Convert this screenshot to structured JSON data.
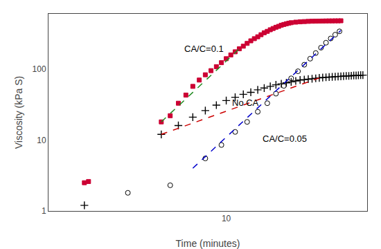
{
  "chart_data": {
    "type": "scatter",
    "xlabel": "Time (minutes)",
    "ylabel": "Viscosity (kPa S)",
    "log": true,
    "grid": false,
    "xlim": [
      1.5,
      45
    ],
    "ylim": [
      1,
      600
    ],
    "xticks": [
      10
    ],
    "yticks": [
      1,
      10,
      100
    ],
    "series": [
      {
        "type": "scatter",
        "marker": "square",
        "color": "#cc0033",
        "x": [
          2.2,
          2.3,
          5.0,
          5.5,
          6.0,
          6.5,
          7.0,
          7.5,
          8.0,
          8.5,
          9.0,
          9.5,
          10.0,
          10.5,
          11.0,
          11.5,
          12.0,
          12.5,
          13.0,
          13.5,
          14.0,
          14.5,
          15.0,
          15.5,
          16.0,
          16.5,
          17.0,
          17.5,
          18.0,
          18.5,
          19.0,
          19.5,
          20.0,
          21.0,
          22.0,
          23.0,
          24.0,
          25.0,
          26.0,
          27.0,
          28.0,
          29.0,
          30.0,
          31.0,
          32.0,
          33.0,
          34.0
        ],
        "values": [
          2.5,
          2.6,
          18.0,
          22.0,
          33.0,
          43.0,
          57.0,
          70.0,
          83.0,
          95.0,
          108.0,
          123.0,
          140.0,
          158.0,
          175.0,
          193.0,
          210.0,
          230.0,
          250.0,
          268.0,
          285.0,
          305.0,
          325.0,
          340.0,
          358.0,
          373.0,
          388.0,
          400.0,
          415.0,
          425.0,
          435.0,
          443.0,
          450.0,
          458.0,
          463.0,
          467.0,
          470.0,
          472.0,
          473.0,
          474.0,
          475.0,
          476.0,
          477.0,
          477.0,
          478.0,
          478.0,
          479.0
        ]
      },
      {
        "type": "line",
        "line_style": "dashed",
        "color": "#228B22",
        "x": [
          5.0,
          11.5
        ],
        "values": [
          18.0,
          193.0
        ]
      },
      {
        "type": "scatter",
        "marker": "cross",
        "color": "#000000",
        "x": [
          2.2,
          5.0,
          6.0,
          7.0,
          8.0,
          9.0,
          10.0,
          11.0,
          12.0,
          13.0,
          14.0,
          15.0,
          16.0,
          17.0,
          18.0,
          19.0,
          20.0,
          21.0,
          22.0,
          23.0,
          24.0,
          25.0,
          26.0,
          27.0,
          28.0,
          29.0,
          30.0,
          31.0,
          32.0,
          33.0,
          34.0,
          35.0,
          36.0,
          37.0,
          38.0,
          39.0,
          40.0,
          41.0,
          42.0,
          43.0
        ],
        "values": [
          1.2,
          12.0,
          16.0,
          21.0,
          26.0,
          31.0,
          36.0,
          40.0,
          44.0,
          47.0,
          51.0,
          54.0,
          57.0,
          60.0,
          62.0,
          64.0,
          66.0,
          68.0,
          70.0,
          71.0,
          72.0,
          73.0,
          74.0,
          75.0,
          76.0,
          76.5,
          77.0,
          77.5,
          78.0,
          78.5,
          79.0,
          79.5,
          80.0,
          80.0,
          80.5,
          81.0,
          81.0,
          81.5,
          82.0,
          82.0
        ]
      },
      {
        "type": "line",
        "line_style": "dashed",
        "color": "#cc0000",
        "x": [
          5.0,
          27.0
        ],
        "values": [
          12.0,
          75.0
        ]
      },
      {
        "type": "scatter",
        "marker": "circle-open",
        "color": "#000000",
        "x": [
          3.5,
          5.5,
          8.0,
          9.5,
          11.0,
          12.5,
          14.0,
          15.5,
          17.0,
          18.5,
          20.0,
          21.5,
          23.0,
          24.5,
          26.0,
          27.5,
          29.0,
          30.5,
          32.0,
          33.5
        ],
        "values": [
          1.8,
          2.3,
          5.5,
          8.5,
          13.0,
          18.0,
          25.0,
          33.0,
          45.0,
          58.0,
          74.0,
          93.0,
          115.0,
          140.0,
          168.0,
          200.0,
          235.0,
          270.0,
          305.0,
          340.0
        ]
      },
      {
        "type": "line",
        "line_style": "dashed",
        "color": "#0000cc",
        "x": [
          7.0,
          34.0
        ],
        "values": [
          4.0,
          350.0
        ]
      }
    ],
    "annotations": [
      {
        "text": "CA/C=0.1",
        "x": 6.3,
        "y": 155.0
      },
      {
        "text": "No CA",
        "x": 10.5,
        "y": 27.0
      },
      {
        "text": "CA/C=0.05",
        "x": 14.5,
        "y": 8.5
      }
    ]
  }
}
